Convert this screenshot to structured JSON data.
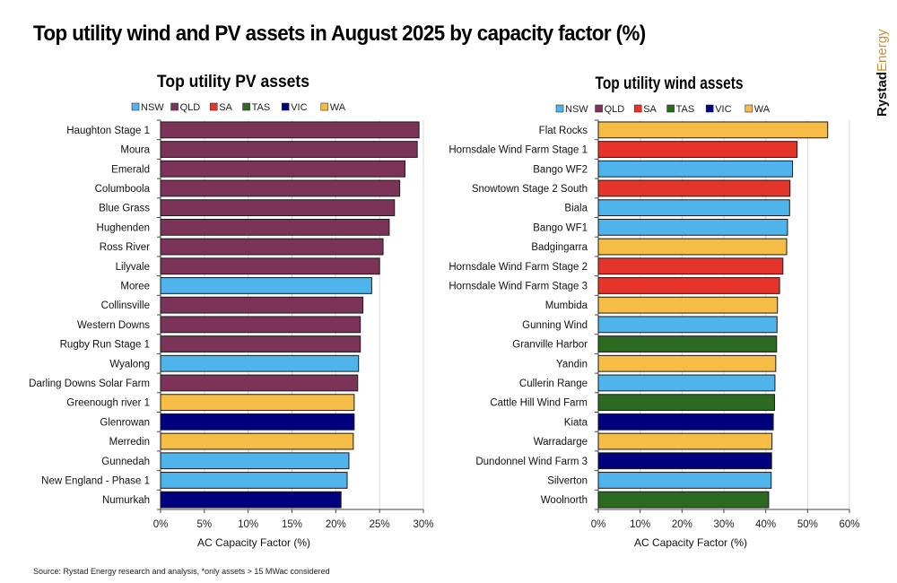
{
  "title": "Top utility wind and PV assets in August 2025 by capacity factor (%)",
  "brand": {
    "part1": "Rystad",
    "part2": "Energy"
  },
  "source": "Source: Rystad Energy research and analysis, *only assets > 15 MWac considered",
  "legend": [
    {
      "key": "NSW",
      "color": "#4fb3ec"
    },
    {
      "key": "QLD",
      "color": "#7b3458"
    },
    {
      "key": "SA",
      "color": "#e5352a"
    },
    {
      "key": "TAS",
      "color": "#2c6a22"
    },
    {
      "key": "VIC",
      "color": "#00007e"
    },
    {
      "key": "WA",
      "color": "#f5bd45"
    }
  ],
  "chart_data": [
    {
      "type": "bar",
      "orientation": "horizontal",
      "title": "Top utility PV assets",
      "xlabel": "AC Capacity Factor (%)",
      "ylabel": "",
      "xlim": [
        0,
        30
      ],
      "xticks": [
        "0%",
        "5%",
        "10%",
        "15%",
        "20%",
        "25%",
        "30%"
      ],
      "grid": true,
      "legend_position": "top",
      "categories": [
        "Haughton Stage 1",
        "Moura",
        "Emerald",
        "Columboola",
        "Blue Grass",
        "Hughenden",
        "Ross River",
        "Lilyvale",
        "Moree",
        "Collinsville",
        "Western Downs",
        "Rugby Run Stage 1",
        "Wyalong",
        "Darling Downs Solar Farm",
        "Greenough river 1",
        "Glenrowan",
        "Merredin",
        "Gunnedah",
        "New England - Phase 1",
        "Numurkah"
      ],
      "values": [
        29.5,
        29.3,
        27.9,
        27.3,
        26.7,
        26.1,
        25.4,
        25.0,
        24.1,
        23.1,
        22.8,
        22.8,
        22.6,
        22.5,
        22.1,
        22.1,
        22.0,
        21.5,
        21.3,
        20.6
      ],
      "states": [
        "QLD",
        "QLD",
        "QLD",
        "QLD",
        "QLD",
        "QLD",
        "QLD",
        "QLD",
        "NSW",
        "QLD",
        "QLD",
        "QLD",
        "NSW",
        "QLD",
        "WA",
        "VIC",
        "WA",
        "NSW",
        "NSW",
        "VIC"
      ]
    },
    {
      "type": "bar",
      "orientation": "horizontal",
      "title": "Top utility wind assets",
      "xlabel": "AC Capacity Factor (%)",
      "ylabel": "",
      "xlim": [
        0,
        60
      ],
      "xticks": [
        "0%",
        "10%",
        "20%",
        "30%",
        "40%",
        "50%",
        "60%"
      ],
      "grid": true,
      "legend_position": "top",
      "categories": [
        "Flat Rocks",
        "Hornsdale Wind Farm Stage 1",
        "Bango WF2",
        "Snowtown Stage 2 South",
        "Biala",
        "Bango WF1",
        "Badgingarra",
        "Hornsdale Wind Farm Stage 2",
        "Hornsdale Wind Farm Stage 3",
        "Mumbida",
        "Gunning Wind",
        "Granville Harbor",
        "Yandin",
        "Cullerin Range",
        "Cattle Hill Wind Farm",
        "Kiata",
        "Warradarge",
        "Dundonnel Wind Farm 3",
        "Silverton",
        "Woolnorth"
      ],
      "values": [
        54.8,
        47.5,
        46.4,
        45.8,
        45.7,
        45.2,
        45.0,
        44.1,
        43.3,
        42.8,
        42.7,
        42.6,
        42.4,
        42.2,
        42.1,
        41.8,
        41.5,
        41.4,
        41.3,
        40.7
      ],
      "states": [
        "WA",
        "SA",
        "NSW",
        "SA",
        "NSW",
        "NSW",
        "WA",
        "SA",
        "SA",
        "WA",
        "NSW",
        "TAS",
        "WA",
        "NSW",
        "TAS",
        "VIC",
        "WA",
        "VIC",
        "NSW",
        "TAS"
      ]
    }
  ]
}
